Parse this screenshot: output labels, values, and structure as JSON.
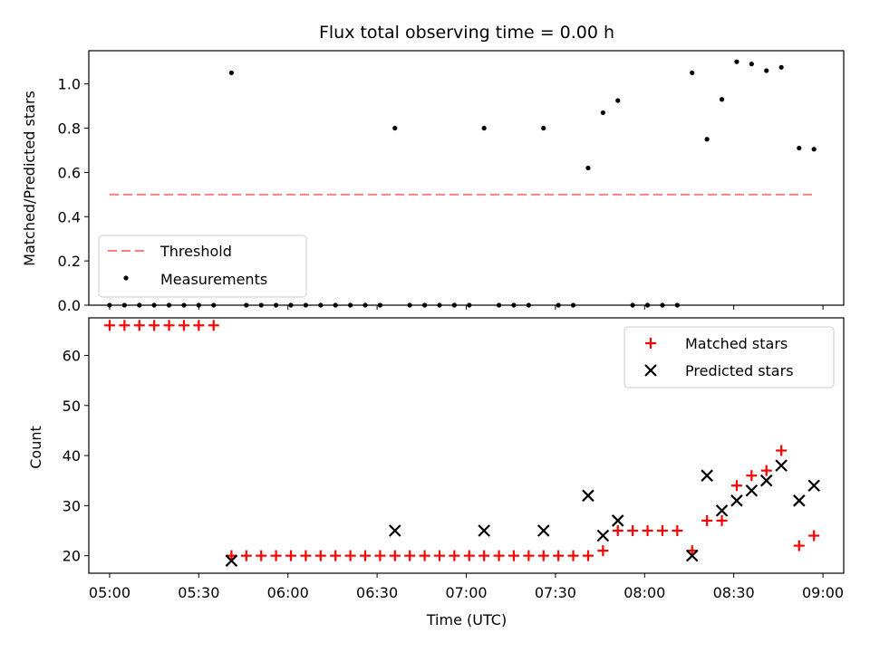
{
  "chart_data": [
    {
      "type": "scatter",
      "title": "Flux total observing time = 0.00 h",
      "ylabel": "Matched/Predicted stars",
      "xlabel": "",
      "xlim": [
        "04:53",
        "09:07"
      ],
      "ylim": [
        0,
        1.15
      ],
      "yticks": [
        "0.0",
        "0.2",
        "0.4",
        "0.6",
        "0.8",
        "1.0"
      ],
      "legend_position": "bottom-left",
      "threshold": {
        "name": "Threshold",
        "value": 0.5,
        "x_start": "05:00",
        "x_end": "08:57",
        "color": "#ff7f7f",
        "style": "dashed"
      },
      "series": [
        {
          "name": "Measurements",
          "marker": "dot",
          "color": "#000000",
          "points": [
            [
              "05:00",
              0
            ],
            [
              "05:05",
              0
            ],
            [
              "05:10",
              0
            ],
            [
              "05:15",
              0
            ],
            [
              "05:20",
              0
            ],
            [
              "05:25",
              0
            ],
            [
              "05:30",
              0
            ],
            [
              "05:35",
              0
            ],
            [
              "05:41",
              1.05
            ],
            [
              "05:46",
              0
            ],
            [
              "05:51",
              0
            ],
            [
              "05:56",
              0
            ],
            [
              "06:01",
              0
            ],
            [
              "06:06",
              0
            ],
            [
              "06:11",
              0
            ],
            [
              "06:16",
              0
            ],
            [
              "06:21",
              0
            ],
            [
              "06:26",
              0
            ],
            [
              "06:31",
              0
            ],
            [
              "06:36",
              0.8
            ],
            [
              "06:41",
              0
            ],
            [
              "06:46",
              0
            ],
            [
              "06:51",
              0
            ],
            [
              "06:56",
              0
            ],
            [
              "07:01",
              0
            ],
            [
              "07:06",
              0.8
            ],
            [
              "07:11",
              0
            ],
            [
              "07:16",
              0
            ],
            [
              "07:21",
              0
            ],
            [
              "07:26",
              0.8
            ],
            [
              "07:31",
              0
            ],
            [
              "07:36",
              0
            ],
            [
              "07:41",
              0.62
            ],
            [
              "07:46",
              0.87
            ],
            [
              "07:51",
              0.925
            ],
            [
              "07:56",
              0
            ],
            [
              "08:01",
              0
            ],
            [
              "08:06",
              0
            ],
            [
              "08:11",
              0
            ],
            [
              "08:16",
              1.05
            ],
            [
              "08:21",
              0.75
            ],
            [
              "08:26",
              0.93
            ],
            [
              "08:31",
              1.1
            ],
            [
              "08:36",
              1.09
            ],
            [
              "08:41",
              1.06
            ],
            [
              "08:46",
              1.075
            ],
            [
              "08:52",
              0.71
            ],
            [
              "08:57",
              0.705
            ]
          ]
        }
      ]
    },
    {
      "type": "scatter",
      "title": "",
      "ylabel": "Count",
      "xlabel": "Time (UTC)",
      "xlim": [
        "04:53",
        "09:07"
      ],
      "ylim": [
        16.5,
        67.5
      ],
      "yticks": [
        "20",
        "30",
        "40",
        "50",
        "60"
      ],
      "xticks": [
        "05:00",
        "05:30",
        "06:00",
        "06:30",
        "07:00",
        "07:30",
        "08:00",
        "08:30",
        "09:00"
      ],
      "legend_position": "top-right",
      "series": [
        {
          "name": "Matched stars",
          "marker": "plus",
          "color": "#ff0000",
          "points": [
            [
              "05:00",
              66
            ],
            [
              "05:05",
              66
            ],
            [
              "05:10",
              66
            ],
            [
              "05:15",
              66
            ],
            [
              "05:20",
              66
            ],
            [
              "05:25",
              66
            ],
            [
              "05:30",
              66
            ],
            [
              "05:35",
              66
            ],
            [
              "05:41",
              20
            ],
            [
              "05:46",
              20
            ],
            [
              "05:51",
              20
            ],
            [
              "05:56",
              20
            ],
            [
              "06:01",
              20
            ],
            [
              "06:06",
              20
            ],
            [
              "06:11",
              20
            ],
            [
              "06:16",
              20
            ],
            [
              "06:21",
              20
            ],
            [
              "06:26",
              20
            ],
            [
              "06:31",
              20
            ],
            [
              "06:36",
              20
            ],
            [
              "06:41",
              20
            ],
            [
              "06:46",
              20
            ],
            [
              "06:51",
              20
            ],
            [
              "06:56",
              20
            ],
            [
              "07:01",
              20
            ],
            [
              "07:06",
              20
            ],
            [
              "07:11",
              20
            ],
            [
              "07:16",
              20
            ],
            [
              "07:21",
              20
            ],
            [
              "07:26",
              20
            ],
            [
              "07:31",
              20
            ],
            [
              "07:36",
              20
            ],
            [
              "07:41",
              20
            ],
            [
              "07:46",
              21
            ],
            [
              "07:51",
              25
            ],
            [
              "07:56",
              25
            ],
            [
              "08:01",
              25
            ],
            [
              "08:06",
              25
            ],
            [
              "08:11",
              25
            ],
            [
              "08:16",
              21
            ],
            [
              "08:21",
              27
            ],
            [
              "08:26",
              27
            ],
            [
              "08:31",
              34
            ],
            [
              "08:36",
              36
            ],
            [
              "08:41",
              37
            ],
            [
              "08:46",
              41
            ],
            [
              "08:52",
              22
            ],
            [
              "08:57",
              24
            ]
          ]
        },
        {
          "name": "Predicted stars",
          "marker": "x",
          "color": "#000000",
          "points": [
            [
              "05:41",
              19
            ],
            [
              "06:36",
              25
            ],
            [
              "07:06",
              25
            ],
            [
              "07:26",
              25
            ],
            [
              "07:41",
              32
            ],
            [
              "07:46",
              24
            ],
            [
              "07:51",
              27
            ],
            [
              "08:16",
              20
            ],
            [
              "08:21",
              36
            ],
            [
              "08:26",
              29
            ],
            [
              "08:31",
              31
            ],
            [
              "08:36",
              33
            ],
            [
              "08:41",
              35
            ],
            [
              "08:46",
              38
            ],
            [
              "08:52",
              31
            ],
            [
              "08:57",
              34
            ]
          ]
        }
      ]
    }
  ]
}
